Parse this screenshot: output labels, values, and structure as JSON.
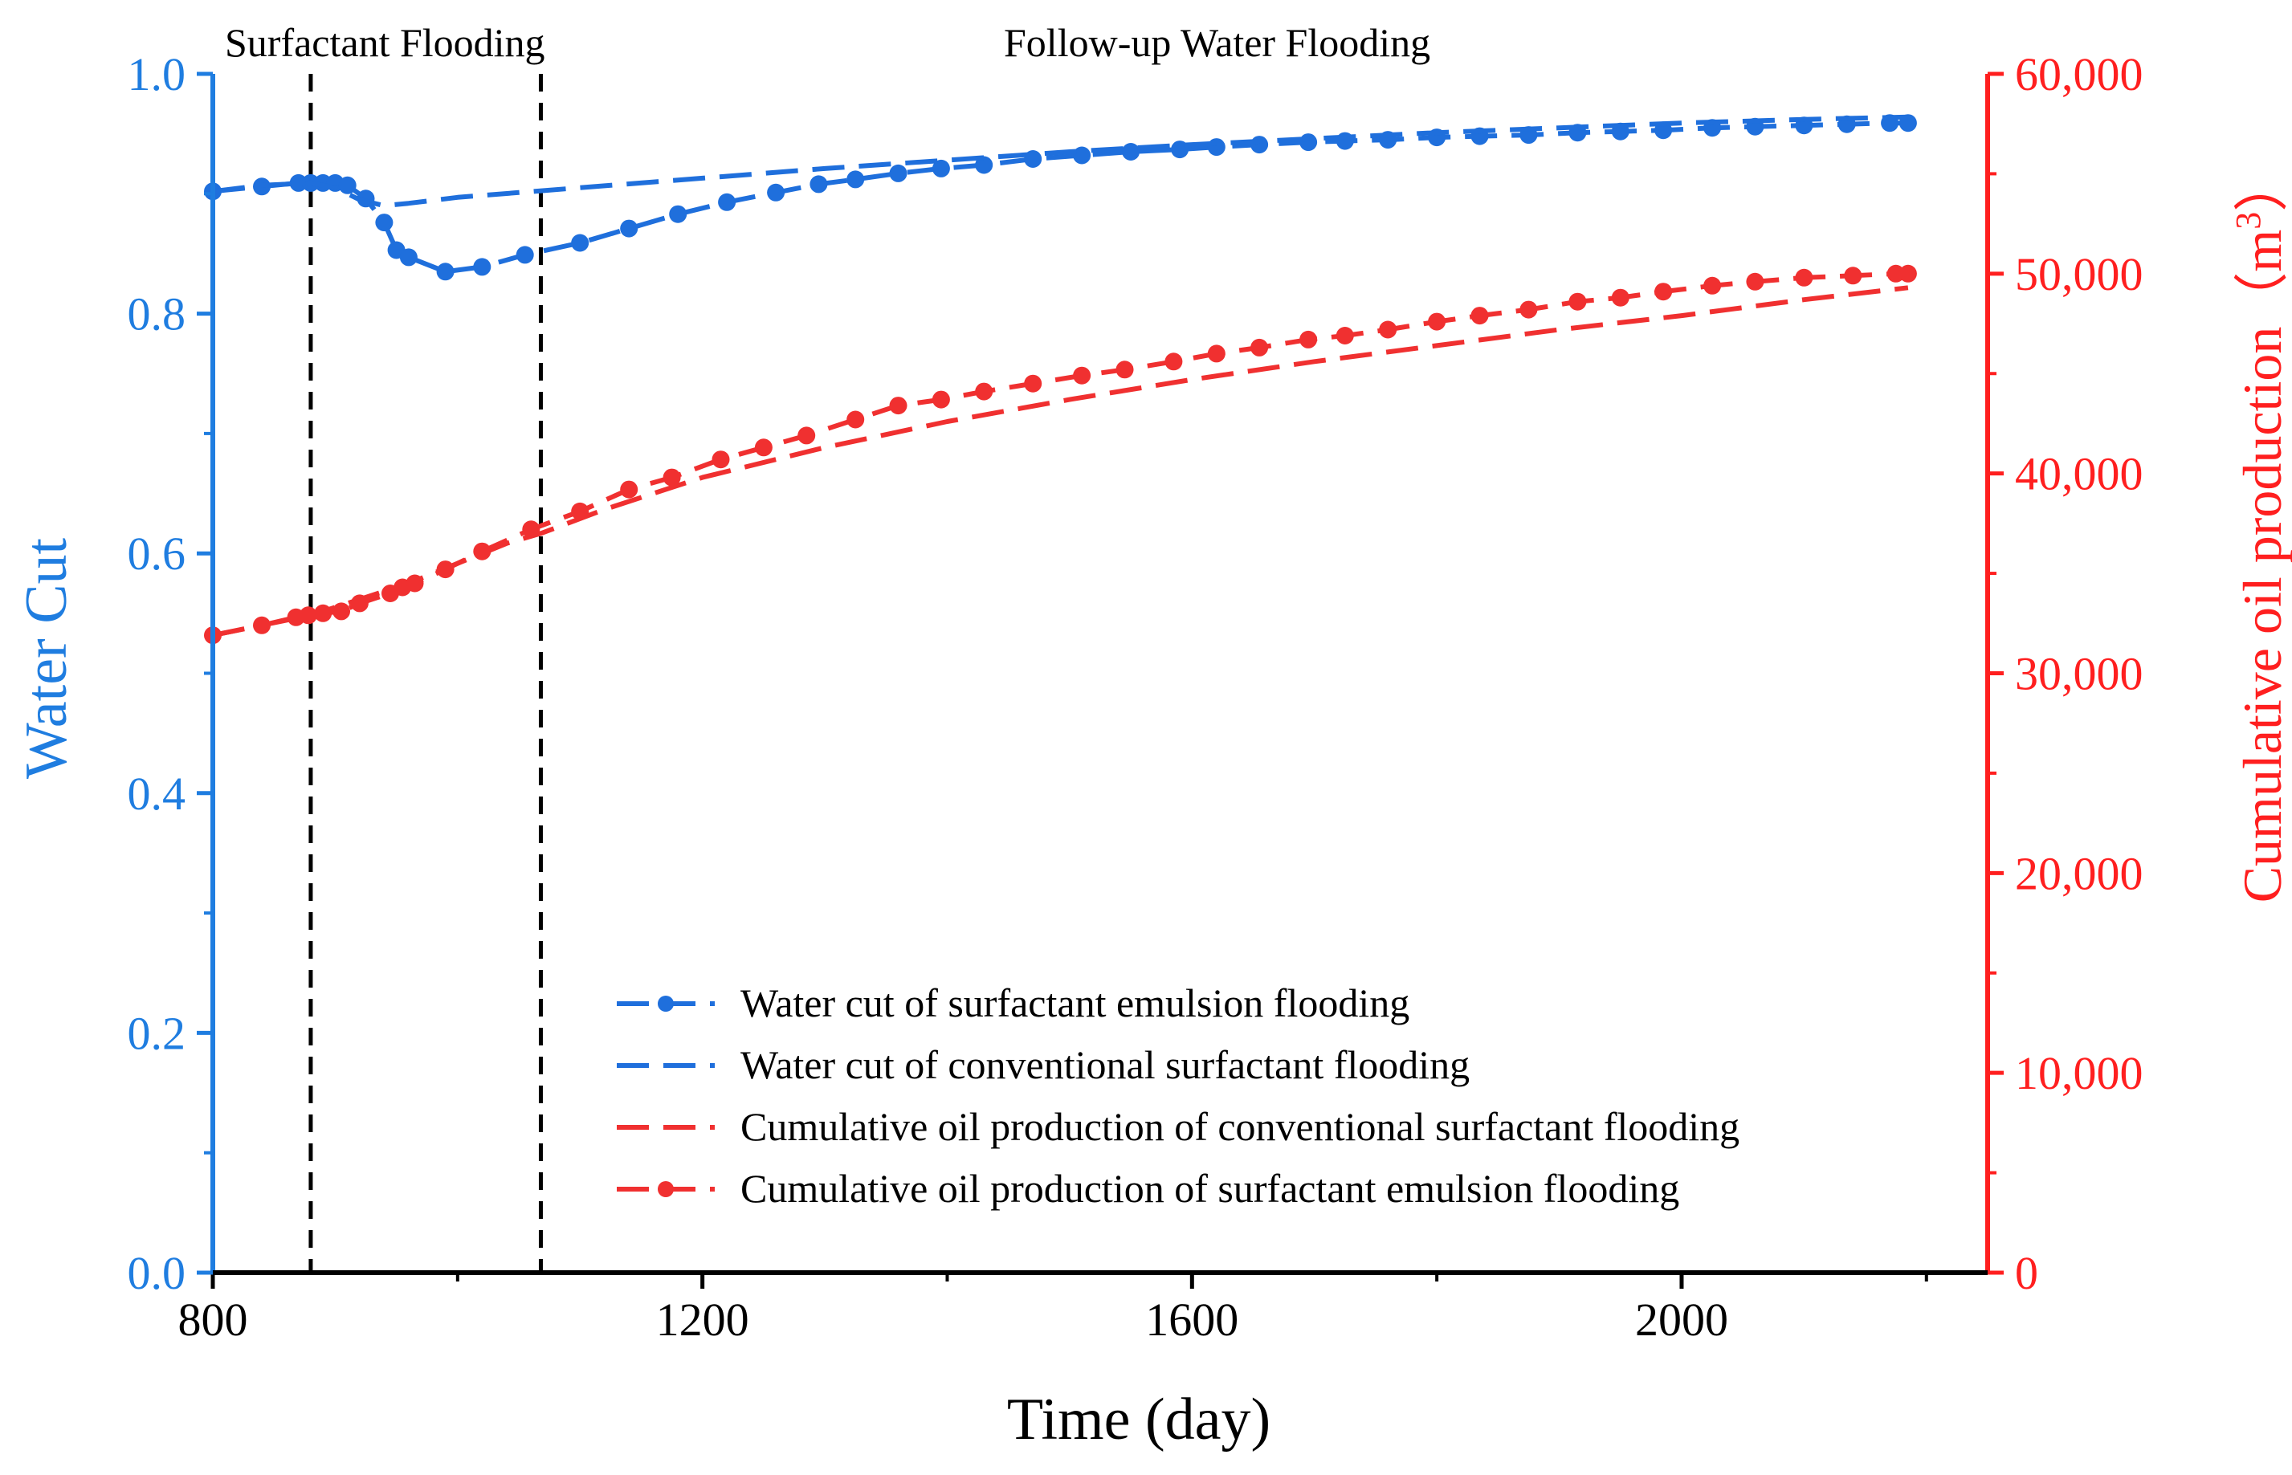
{
  "chart_data": {
    "type": "line",
    "title": "",
    "xlabel": "Time (day)",
    "ylabel_left": "Water Cut",
    "ylabel_right_prefix": "Cumulative oil production（m",
    "ylabel_right_sup": "3",
    "ylabel_right_suffix": "）",
    "xlim": [
      800,
      2250
    ],
    "ylim_left": [
      0,
      1.0
    ],
    "ylim_right": [
      0,
      60000
    ],
    "x_ticks": [
      "800",
      "1200",
      "1600",
      "2000"
    ],
    "x_tick_values": [
      800,
      1200,
      1600,
      2000
    ],
    "y_left_ticks": [
      "0.0",
      "0.2",
      "0.4",
      "0.6",
      "0.8",
      "1.0"
    ],
    "y_left_tick_values": [
      0,
      0.2,
      0.4,
      0.6,
      0.8,
      1.0
    ],
    "y_right_ticks": [
      "0",
      "10,000",
      "20,000",
      "30,000",
      "40,000",
      "50,000",
      "60,000"
    ],
    "y_right_tick_values": [
      0,
      10000,
      20000,
      30000,
      40000,
      50000,
      60000
    ],
    "phase_lines": [
      880,
      1068
    ],
    "phase_labels": [
      "Surfactant Flooding",
      "Follow-up Water Flooding"
    ],
    "grid": false,
    "legend_position": "bottom-center",
    "colors": {
      "left_axis": "#1f7de0",
      "right_axis": "#ff1f1f",
      "blue_series": "#1f6fdc",
      "red_series": "#f03030",
      "phase_line": "#000000"
    },
    "series": [
      {
        "name": "Water cut of surfactant emulsion flooding",
        "axis": "left",
        "style": "dash-marker",
        "color": "#1f6fdc",
        "x": [
          800,
          840,
          870,
          880,
          890,
          900,
          910,
          925,
          940,
          950,
          960,
          990,
          1020,
          1055,
          1100,
          1140,
          1180,
          1220,
          1260,
          1295,
          1325,
          1360,
          1395,
          1430,
          1470,
          1510,
          1550,
          1590,
          1620,
          1655,
          1695,
          1725,
          1760,
          1800,
          1835,
          1875,
          1915,
          1950,
          1985,
          2025,
          2060,
          2100,
          2135,
          2170,
          2185
        ],
        "values": [
          0.902,
          0.906,
          0.909,
          0.909,
          0.909,
          0.909,
          0.907,
          0.896,
          0.876,
          0.853,
          0.847,
          0.835,
          0.839,
          0.849,
          0.859,
          0.871,
          0.883,
          0.893,
          0.901,
          0.908,
          0.912,
          0.917,
          0.921,
          0.924,
          0.929,
          0.932,
          0.935,
          0.937,
          0.939,
          0.941,
          0.943,
          0.944,
          0.945,
          0.947,
          0.948,
          0.949,
          0.951,
          0.952,
          0.953,
          0.955,
          0.956,
          0.957,
          0.958,
          0.959,
          0.959
        ]
      },
      {
        "name": "Water cut of conventional surfactant flooding",
        "axis": "left",
        "style": "dash",
        "color": "#1f6fdc",
        "x": [
          800,
          840,
          880,
          900,
          920,
          940,
          960,
          1000,
          1050,
          1100,
          1200,
          1300,
          1400,
          1500,
          1600,
          1700,
          1800,
          1900,
          2000,
          2100,
          2185
        ],
        "values": [
          0.902,
          0.907,
          0.909,
          0.905,
          0.895,
          0.89,
          0.892,
          0.897,
          0.901,
          0.905,
          0.913,
          0.921,
          0.928,
          0.935,
          0.941,
          0.946,
          0.951,
          0.955,
          0.959,
          0.962,
          0.964
        ]
      },
      {
        "name": "Cumulative oil production of conventional surfactant flooding",
        "axis": "right",
        "style": "dash",
        "color": "#f03030",
        "x": [
          800,
          880,
          960,
          1040,
          1068,
          1120,
          1200,
          1300,
          1400,
          1500,
          1600,
          1700,
          1800,
          1900,
          2000,
          2100,
          2185
        ],
        "values": [
          31900,
          32900,
          34500,
          36500,
          37000,
          38200,
          39800,
          41300,
          42600,
          43700,
          44700,
          45600,
          46400,
          47200,
          47900,
          48700,
          49300
        ]
      },
      {
        "name": "Cumulative oil production of surfactant emulsion flooding",
        "axis": "right",
        "style": "dash-marker",
        "color": "#f03030",
        "x": [
          800,
          840,
          868,
          878,
          890,
          905,
          920,
          945,
          955,
          965,
          990,
          1020,
          1060,
          1100,
          1140,
          1175,
          1215,
          1250,
          1285,
          1325,
          1360,
          1395,
          1430,
          1470,
          1510,
          1545,
          1585,
          1620,
          1655,
          1695,
          1725,
          1760,
          1800,
          1835,
          1875,
          1915,
          1950,
          1985,
          2025,
          2060,
          2100,
          2140,
          2175,
          2185
        ],
        "values": [
          31900,
          32400,
          32800,
          32900,
          33000,
          33100,
          33500,
          34000,
          34300,
          34500,
          35200,
          36100,
          37200,
          38100,
          39200,
          39800,
          40700,
          41300,
          41900,
          42700,
          43400,
          43700,
          44100,
          44500,
          44900,
          45200,
          45600,
          46000,
          46300,
          46700,
          46900,
          47200,
          47600,
          47900,
          48200,
          48600,
          48800,
          49100,
          49400,
          49600,
          49800,
          49900,
          50000,
          50000
        ]
      }
    ]
  }
}
